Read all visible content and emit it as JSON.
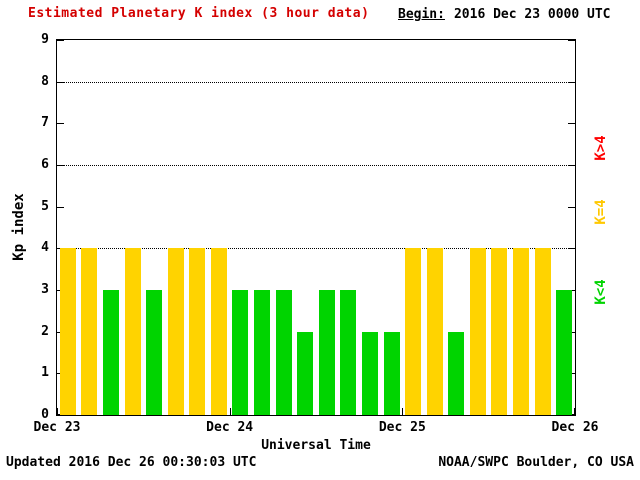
{
  "title": "Estimated Planetary K index (3 hour data)",
  "begin": {
    "label": "Begin:",
    "value": "2016 Dec 23 0000 UTC"
  },
  "footer": {
    "updated": "Updated 2016 Dec 26 00:30:03 UTC",
    "credit": "NOAA/SWPC Boulder, CO USA"
  },
  "legend": [
    {
      "label": "K>4",
      "color": "#ff0000"
    },
    {
      "label": "K=4",
      "color": "#ffc800"
    },
    {
      "label": "K<4",
      "color": "#00d400"
    }
  ],
  "chart_data": {
    "type": "bar",
    "title": "Estimated Planetary K index (3 hour data)",
    "xlabel": "Universal Time",
    "ylabel": "Kp index",
    "ylim": [
      0,
      9
    ],
    "y_ticks": [
      0,
      1,
      2,
      3,
      4,
      5,
      6,
      7,
      8,
      9
    ],
    "dotted_gridlines": [
      4,
      6,
      8
    ],
    "x_tick_labels": [
      "Dec 23",
      "Dec 24",
      "Dec 25",
      "Dec 26"
    ],
    "values": [
      4,
      4,
      3,
      4,
      3,
      4,
      4,
      4,
      3,
      3,
      3,
      2,
      3,
      3,
      2,
      2,
      4,
      4,
      2,
      4,
      4,
      4,
      4,
      3
    ],
    "colors": {
      "lt4": "#00d400",
      "eq4": "#ffd300",
      "gt4": "#ff0000"
    },
    "grid": "dotted horizontal at 4,6,8",
    "legend_position": "right, vertical text"
  }
}
